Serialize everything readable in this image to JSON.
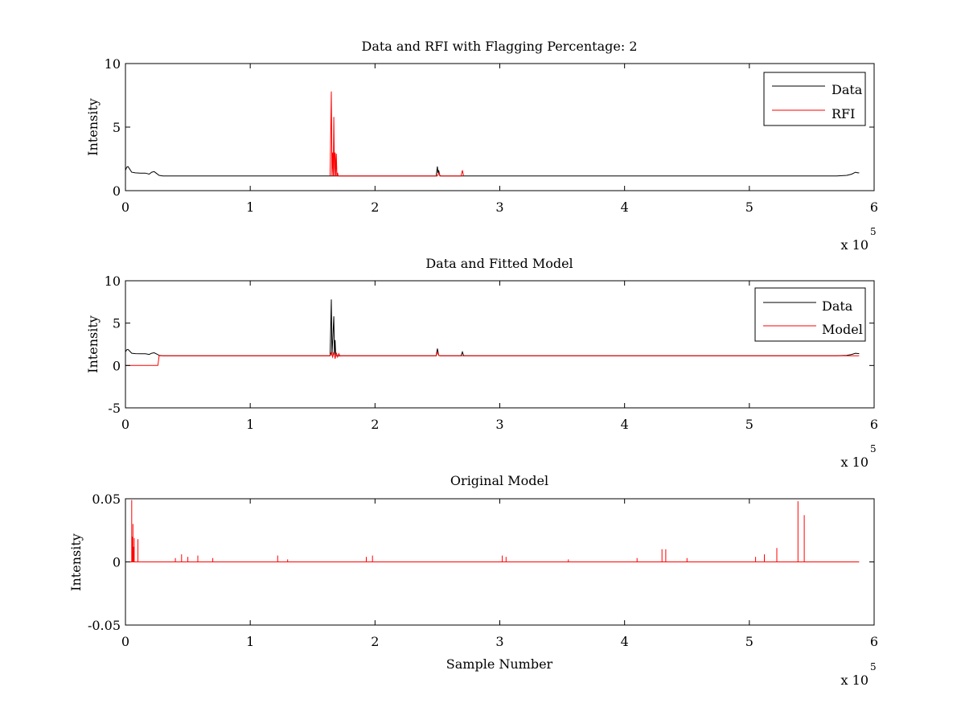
{
  "figure": {
    "background": "#ffffff",
    "colors": {
      "data": "#000000",
      "rfi": "#ff0000",
      "model": "#ff0000"
    }
  },
  "chart_data": [
    {
      "type": "line",
      "title": "Data and RFI with Flagging Percentage: 2",
      "xlabel": "",
      "ylabel": "Intensity",
      "xlim": [
        0,
        6
      ],
      "ylim": [
        0,
        10
      ],
      "xticks": [
        0,
        1,
        2,
        3,
        4,
        5,
        6
      ],
      "yticks": [
        0,
        5,
        10
      ],
      "x_multiplier": "x 10",
      "x_multiplier_exponent": "5",
      "legend": {
        "position": "top-right",
        "entries": [
          "Data",
          "RFI"
        ]
      },
      "series": [
        {
          "name": "Data",
          "color": "#000000",
          "x": [
            0,
            0.01,
            0.02,
            0.03,
            0.05,
            0.08,
            0.12,
            0.16,
            0.19,
            0.21,
            0.23,
            0.25,
            0.27,
            0.3,
            0.6,
            1.0,
            1.5,
            1.65,
            2.0,
            2.49,
            2.5,
            2.505,
            2.51,
            2.52,
            3.0,
            4.0,
            4.6,
            5.0,
            5.5,
            5.7,
            5.78,
            5.82,
            5.85,
            5.87,
            5.88
          ],
          "y": [
            1.6,
            1.85,
            1.9,
            1.75,
            1.45,
            1.4,
            1.38,
            1.38,
            1.3,
            1.45,
            1.5,
            1.35,
            1.2,
            1.15,
            1.15,
            1.15,
            1.15,
            1.15,
            1.15,
            1.15,
            1.9,
            1.4,
            1.6,
            1.15,
            1.15,
            1.15,
            1.15,
            1.15,
            1.15,
            1.15,
            1.2,
            1.3,
            1.45,
            1.4,
            1.4
          ]
        },
        {
          "name": "RFI",
          "color": "#ff0000",
          "x": [
            1.64,
            1.65,
            1.655,
            1.66,
            1.665,
            1.67,
            1.675,
            1.68,
            1.685,
            1.69,
            1.695,
            1.7,
            1.705,
            2.5,
            2.51,
            2.52,
            2.53,
            2.69,
            2.7,
            2.71
          ],
          "y": [
            1.15,
            7.8,
            1.15,
            3.0,
            1.15,
            5.8,
            1.15,
            3.0,
            1.15,
            2.9,
            1.15,
            1.4,
            1.15,
            1.15,
            1.4,
            1.2,
            1.15,
            1.15,
            1.6,
            1.15
          ]
        }
      ]
    },
    {
      "type": "line",
      "title": "Data and Fitted Model",
      "xlabel": "",
      "ylabel": "Intensity",
      "xlim": [
        0,
        6
      ],
      "ylim": [
        -5,
        10
      ],
      "xticks": [
        0,
        1,
        2,
        3,
        4,
        5,
        6
      ],
      "yticks": [
        -5,
        0,
        5,
        10
      ],
      "x_multiplier": "x 10",
      "x_multiplier_exponent": "5",
      "legend": {
        "position": "top-right",
        "entries": [
          "Data",
          "Model"
        ]
      },
      "series": [
        {
          "name": "Data",
          "color": "#000000",
          "x": [
            0,
            0.01,
            0.02,
            0.03,
            0.05,
            0.08,
            0.12,
            0.16,
            0.19,
            0.21,
            0.23,
            0.25,
            0.27,
            0.3,
            1.0,
            1.64,
            1.65,
            1.655,
            1.67,
            1.675,
            1.68,
            1.685,
            1.7,
            2.0,
            2.49,
            2.5,
            2.51,
            2.52,
            2.69,
            2.7,
            2.71,
            3.0,
            5.7,
            5.78,
            5.82,
            5.85,
            5.88
          ],
          "y": [
            1.6,
            1.85,
            1.9,
            1.75,
            1.45,
            1.4,
            1.38,
            1.38,
            1.3,
            1.45,
            1.5,
            1.35,
            1.2,
            1.15,
            1.15,
            1.15,
            7.8,
            1.15,
            5.8,
            1.15,
            3.0,
            1.15,
            1.15,
            1.15,
            1.15,
            2.0,
            1.2,
            1.15,
            1.15,
            1.6,
            1.15,
            1.15,
            1.15,
            1.2,
            1.3,
            1.45,
            1.4
          ]
        },
        {
          "name": "Model",
          "color": "#ff0000",
          "x": [
            0,
            0.26,
            0.27,
            1.64,
            1.65,
            1.66,
            1.67,
            1.68,
            1.69,
            1.7,
            1.71,
            1.72,
            1.73,
            2.49,
            2.5,
            2.51,
            2.52,
            5.88
          ],
          "y": [
            0,
            0,
            1.15,
            1.15,
            1.5,
            1.0,
            1.6,
            0.8,
            1.5,
            1.0,
            1.4,
            1.1,
            1.15,
            1.15,
            1.6,
            1.2,
            1.15,
            1.15
          ]
        }
      ]
    },
    {
      "type": "line",
      "title": "Original Model",
      "xlabel": "Sample Number",
      "ylabel": "Intensity",
      "xlim": [
        0,
        6
      ],
      "ylim": [
        -0.05,
        0.05
      ],
      "xticks": [
        0,
        1,
        2,
        3,
        4,
        5,
        6
      ],
      "yticks": [
        -0.05,
        0,
        0.05
      ],
      "ytick_labels": [
        "-0.05",
        "0",
        "0.05"
      ],
      "x_multiplier": "x 10",
      "x_multiplier_exponent": "5",
      "series": [
        {
          "color": "#ff0000",
          "baseline": 0,
          "x_end": 5.88,
          "spikes_x": [
            0.05,
            0.055,
            0.06,
            0.065,
            0.07,
            0.1,
            0.4,
            0.45,
            0.5,
            0.58,
            0.7,
            1.22,
            1.3,
            1.93,
            1.98,
            3.02,
            3.05,
            3.55,
            4.1,
            4.3,
            4.33,
            4.5,
            5.05,
            5.12,
            5.22,
            5.39,
            5.44
          ],
          "spikes_y": [
            0.049,
            0.02,
            0.03,
            0.012,
            0.019,
            0.018,
            0.003,
            0.006,
            0.004,
            0.005,
            0.003,
            0.005,
            0.002,
            0.004,
            0.005,
            0.005,
            0.004,
            0.002,
            0.003,
            0.01,
            0.01,
            0.003,
            0.004,
            0.006,
            0.011,
            0.048,
            0.037
          ]
        }
      ]
    }
  ]
}
